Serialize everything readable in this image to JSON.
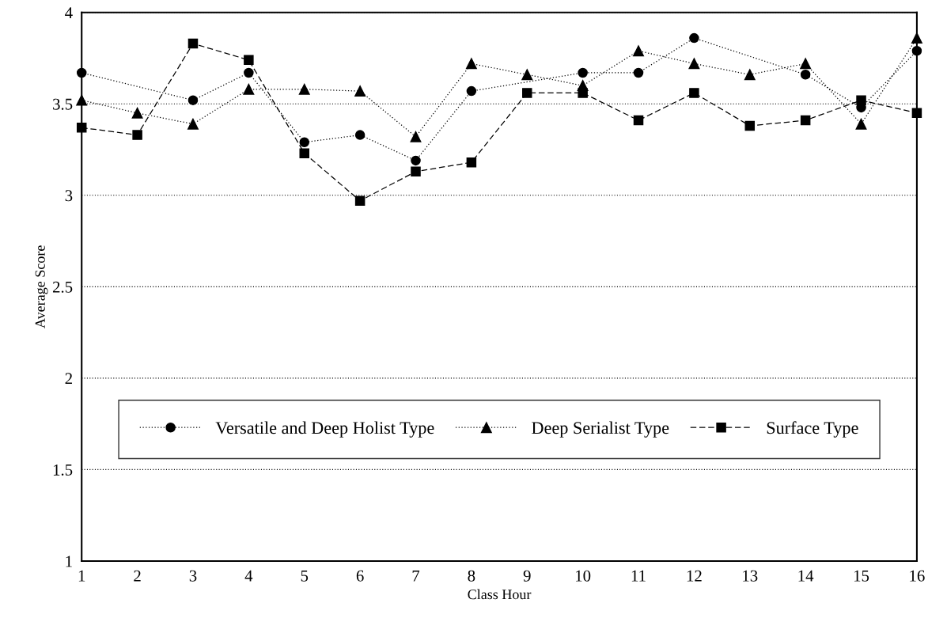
{
  "chart_data": {
    "type": "line",
    "xlabel": "Class Hour",
    "ylabel": "Average Score",
    "x": [
      1,
      2,
      3,
      4,
      5,
      6,
      7,
      8,
      9,
      10,
      11,
      12,
      13,
      14,
      15,
      16
    ],
    "xlim": [
      1,
      16
    ],
    "xticks": [
      1,
      2,
      3,
      4,
      5,
      6,
      7,
      8,
      9,
      10,
      11,
      12,
      13,
      14,
      15,
      16
    ],
    "ylim": [
      1,
      4
    ],
    "yticks": [
      1,
      1.5,
      2,
      2.5,
      3,
      3.5,
      4
    ],
    "grid": "y",
    "legend": "bottom",
    "series": [
      {
        "name": "Versatile and Deep Holist Type",
        "color": "#000000",
        "marker": "circle",
        "line_style": "dotted",
        "values": [
          3.67,
          null,
          3.52,
          3.67,
          3.29,
          3.33,
          3.19,
          3.57,
          null,
          3.67,
          3.67,
          3.86,
          null,
          3.66,
          3.48,
          3.79
        ]
      },
      {
        "name": "Deep Serialist Type",
        "color": "#000000",
        "marker": "triangle",
        "line_style": "dotted",
        "values": [
          3.52,
          3.45,
          3.39,
          3.58,
          3.58,
          3.57,
          3.32,
          3.72,
          3.66,
          3.6,
          3.79,
          3.72,
          3.66,
          3.72,
          3.39,
          3.86
        ]
      },
      {
        "name": "Surface Type",
        "color": "#000000",
        "marker": "square",
        "line_style": "dashed",
        "values": [
          3.37,
          3.33,
          3.83,
          3.74,
          3.23,
          2.97,
          3.13,
          3.18,
          3.56,
          3.56,
          3.41,
          3.56,
          3.38,
          3.41,
          3.52,
          3.45
        ]
      }
    ]
  }
}
